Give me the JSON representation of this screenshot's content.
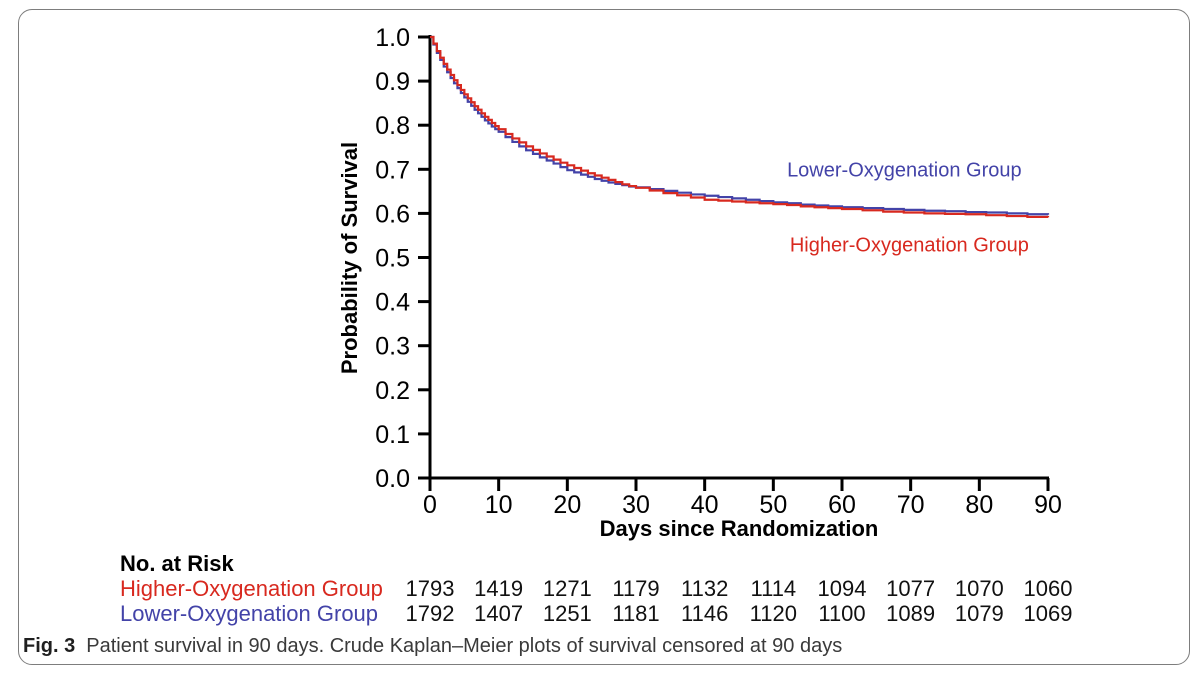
{
  "figure": {
    "caption_label": "Fig. 3",
    "caption_text": "Patient survival in 90 days. Crude Kaplan–Meier plots of survival censored at 90 days"
  },
  "colors": {
    "higher_group": "#d8291f",
    "lower_group": "#4343a8",
    "axis": "#000000",
    "caption_text": "#3a3a3a"
  },
  "chart_data": {
    "type": "line",
    "subtype": "kaplan-meier-step",
    "title": "",
    "xlabel": "Days since Randomization",
    "ylabel": "Probability of Survival",
    "xlim": [
      0,
      90
    ],
    "ylim": [
      0.0,
      1.0
    ],
    "x_ticks": [
      0,
      10,
      20,
      30,
      40,
      50,
      60,
      70,
      80,
      90
    ],
    "y_tick_labels": [
      "1.0",
      "0.9",
      "0.8",
      "0.7",
      "0.6",
      "0.5",
      "0.4",
      "0.3",
      "0.2",
      "0.1",
      "0.0"
    ],
    "grid": false,
    "legend_position": "annotated-on-plot",
    "annotations": [
      {
        "text": "Lower-Oxygenation Group",
        "color": "#4343a8",
        "x": 52,
        "y": 0.7
      },
      {
        "text": "Higher-Oxygenation Group",
        "color": "#d8291f",
        "x": 52.4,
        "y": 0.53
      }
    ],
    "series": [
      {
        "id": "higher-oxygenation-group",
        "name": "Higher-Oxygenation Group",
        "color": "#d8291f",
        "points": [
          [
            0,
            1.0
          ],
          [
            0.5,
            0.985
          ],
          [
            1,
            0.968
          ],
          [
            1.5,
            0.953
          ],
          [
            2,
            0.939
          ],
          [
            2.5,
            0.926
          ],
          [
            3,
            0.914
          ],
          [
            3.5,
            0.902
          ],
          [
            4,
            0.891
          ],
          [
            4.5,
            0.88
          ],
          [
            5,
            0.87
          ],
          [
            5.5,
            0.861
          ],
          [
            6,
            0.852
          ],
          [
            6.5,
            0.843
          ],
          [
            7,
            0.835
          ],
          [
            7.5,
            0.827
          ],
          [
            8,
            0.819
          ],
          [
            8.5,
            0.812
          ],
          [
            9,
            0.805
          ],
          [
            9.5,
            0.798
          ],
          [
            10,
            0.791
          ],
          [
            11,
            0.78
          ],
          [
            12,
            0.77
          ],
          [
            13,
            0.761
          ],
          [
            14,
            0.752
          ],
          [
            15,
            0.744
          ],
          [
            16,
            0.736
          ],
          [
            17,
            0.729
          ],
          [
            18,
            0.722
          ],
          [
            19,
            0.715
          ],
          [
            20,
            0.709
          ],
          [
            21,
            0.703
          ],
          [
            22,
            0.697
          ],
          [
            23,
            0.691
          ],
          [
            24,
            0.686
          ],
          [
            25,
            0.681
          ],
          [
            26,
            0.676
          ],
          [
            27,
            0.671
          ],
          [
            28,
            0.666
          ],
          [
            29,
            0.662
          ],
          [
            30,
            0.658
          ],
          [
            32,
            0.652
          ],
          [
            34,
            0.646
          ],
          [
            36,
            0.641
          ],
          [
            38,
            0.636
          ],
          [
            40,
            0.631
          ],
          [
            42,
            0.629
          ],
          [
            44,
            0.627
          ],
          [
            46,
            0.625
          ],
          [
            48,
            0.623
          ],
          [
            50,
            0.621
          ],
          [
            52,
            0.619
          ],
          [
            54,
            0.616
          ],
          [
            56,
            0.614
          ],
          [
            58,
            0.612
          ],
          [
            60,
            0.61
          ],
          [
            63,
            0.607
          ],
          [
            66,
            0.604
          ],
          [
            69,
            0.602
          ],
          [
            72,
            0.6
          ],
          [
            75,
            0.599
          ],
          [
            78,
            0.598
          ],
          [
            81,
            0.596
          ],
          [
            84,
            0.594
          ],
          [
            87,
            0.592
          ],
          [
            90,
            0.591
          ]
        ]
      },
      {
        "id": "lower-oxygenation-group",
        "name": "Lower-Oxygenation Group",
        "color": "#4343a8",
        "points": [
          [
            0,
            1.0
          ],
          [
            0.5,
            0.983
          ],
          [
            1,
            0.964
          ],
          [
            1.5,
            0.948
          ],
          [
            2,
            0.933
          ],
          [
            2.5,
            0.92
          ],
          [
            3,
            0.907
          ],
          [
            3.5,
            0.895
          ],
          [
            4,
            0.884
          ],
          [
            4.5,
            0.873
          ],
          [
            5,
            0.863
          ],
          [
            5.5,
            0.853
          ],
          [
            6,
            0.844
          ],
          [
            6.5,
            0.835
          ],
          [
            7,
            0.827
          ],
          [
            7.5,
            0.819
          ],
          [
            8,
            0.811
          ],
          [
            8.5,
            0.804
          ],
          [
            9,
            0.797
          ],
          [
            9.5,
            0.791
          ],
          [
            10,
            0.785
          ],
          [
            11,
            0.773
          ],
          [
            12,
            0.762
          ],
          [
            13,
            0.752
          ],
          [
            14,
            0.743
          ],
          [
            15,
            0.735
          ],
          [
            16,
            0.727
          ],
          [
            17,
            0.72
          ],
          [
            18,
            0.713
          ],
          [
            19,
            0.705
          ],
          [
            20,
            0.698
          ],
          [
            21,
            0.693
          ],
          [
            22,
            0.688
          ],
          [
            23,
            0.683
          ],
          [
            24,
            0.678
          ],
          [
            25,
            0.674
          ],
          [
            26,
            0.67
          ],
          [
            27,
            0.667
          ],
          [
            28,
            0.664
          ],
          [
            29,
            0.661
          ],
          [
            30,
            0.659
          ],
          [
            32,
            0.655
          ],
          [
            34,
            0.651
          ],
          [
            36,
            0.647
          ],
          [
            38,
            0.643
          ],
          [
            40,
            0.64
          ],
          [
            42,
            0.637
          ],
          [
            44,
            0.634
          ],
          [
            46,
            0.631
          ],
          [
            48,
            0.628
          ],
          [
            50,
            0.625
          ],
          [
            52,
            0.623
          ],
          [
            54,
            0.62
          ],
          [
            56,
            0.618
          ],
          [
            58,
            0.616
          ],
          [
            60,
            0.614
          ],
          [
            63,
            0.612
          ],
          [
            66,
            0.61
          ],
          [
            69,
            0.608
          ],
          [
            72,
            0.606
          ],
          [
            75,
            0.605
          ],
          [
            78,
            0.603
          ],
          [
            81,
            0.602
          ],
          [
            84,
            0.6
          ],
          [
            87,
            0.598
          ],
          [
            90,
            0.597
          ]
        ]
      }
    ]
  },
  "risk_table": {
    "header": "No. at Risk",
    "days": [
      0,
      10,
      20,
      30,
      40,
      50,
      60,
      70,
      80,
      90
    ],
    "rows": [
      {
        "id": "higher-oxygenation-group",
        "label": "Higher-Oxygenation Group",
        "color": "#d8291f",
        "values": [
          1793,
          1419,
          1271,
          1179,
          1132,
          1114,
          1094,
          1077,
          1070,
          1060
        ]
      },
      {
        "id": "lower-oxygenation-group",
        "label": "Lower-Oxygenation Group",
        "color": "#4343a8",
        "values": [
          1792,
          1407,
          1251,
          1181,
          1146,
          1120,
          1100,
          1089,
          1079,
          1069
        ]
      }
    ]
  }
}
